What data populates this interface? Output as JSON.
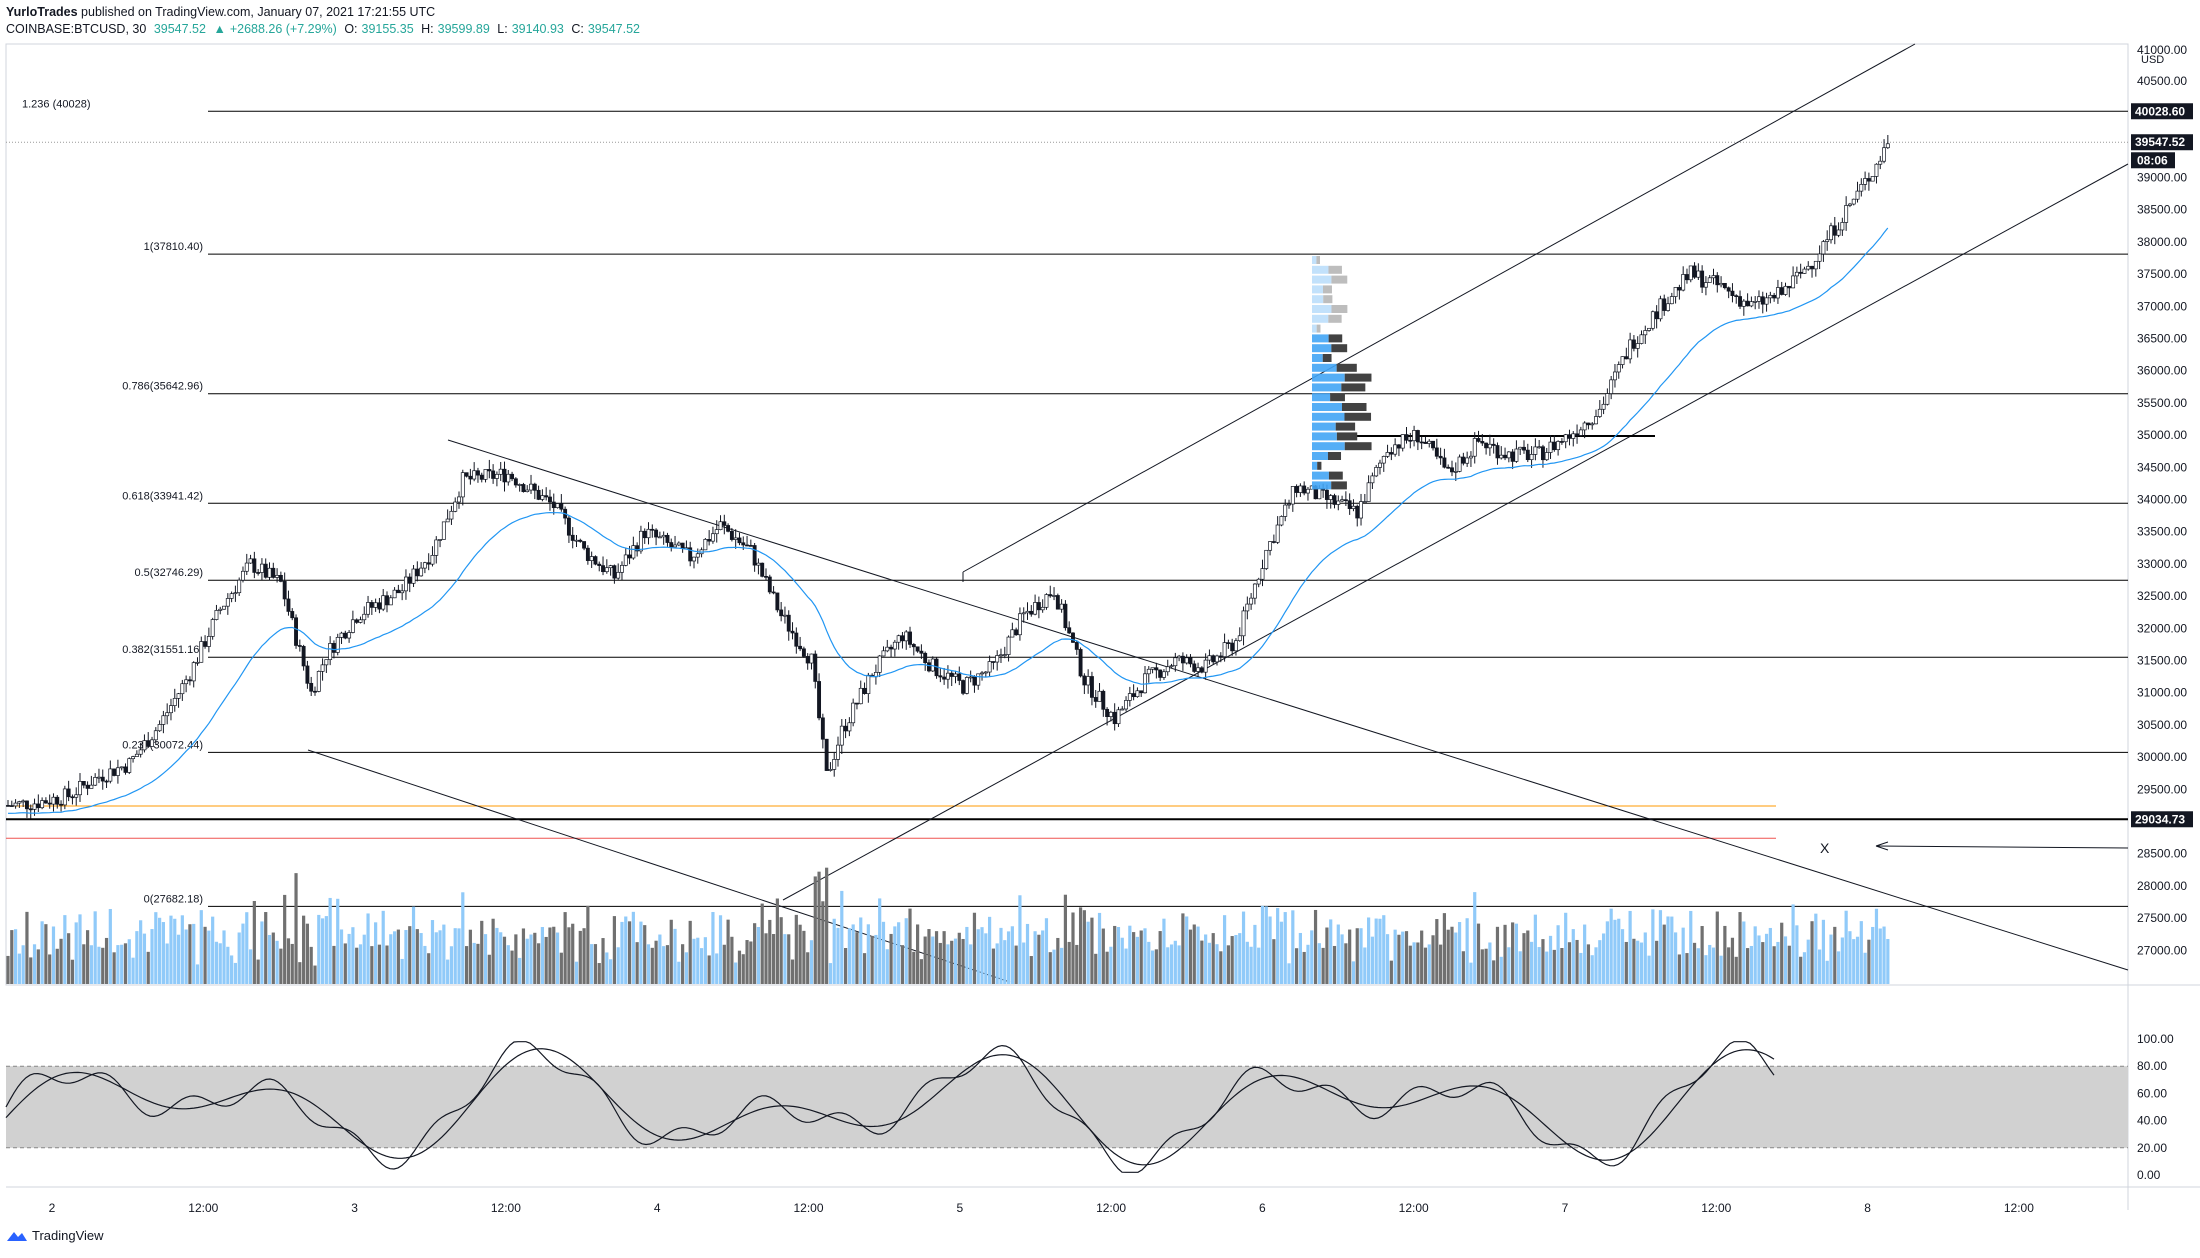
{
  "header": {
    "author": "YurloTrades",
    "published_text": "published on TradingView.com, January 07, 2021 17:21:55 UTC",
    "symbol": "COINBASE:BTCUSD, 30",
    "last": "39547.52",
    "change": "+2688.26 (+7.29%)",
    "o_label": "O:",
    "o": "39155.35",
    "h_label": "H:",
    "h": "39599.89",
    "l_label": "L:",
    "l": "39140.93",
    "c_label": "C:",
    "c": "39547.52"
  },
  "footer": {
    "brand": "TradingView"
  },
  "colors": {
    "up": "#ffffff",
    "down": "#131722",
    "ema": "#2196f3",
    "vol_up": "#90caf9",
    "vol_down": "#707070",
    "grid": "#000000"
  },
  "chart_data": {
    "type": "candlestick",
    "price_axis": {
      "currency": "USD",
      "ticks": [
        "41000.00",
        "40500.00",
        "39000.00",
        "38500.00",
        "38000.00",
        "37500.00",
        "37000.00",
        "36500.00",
        "36000.00",
        "35500.00",
        "35000.00",
        "34500.00",
        "34000.00",
        "33500.00",
        "33000.00",
        "32500.00",
        "32000.00",
        "31500.00",
        "31000.00",
        "30500.00",
        "30000.00",
        "29500.00",
        "28500.00",
        "28000.00",
        "27500.00",
        "27000.00"
      ],
      "badges": [
        {
          "value": 40028.6,
          "text": "40028.60"
        },
        {
          "value": 39547.52,
          "text": "39547.52"
        },
        {
          "value": 29034.73,
          "text": "29034.73"
        }
      ],
      "countdown": "08:06"
    },
    "time_axis": [
      "2",
      "12:00",
      "3",
      "12:00",
      "4",
      "12:00",
      "5",
      "12:00",
      "6",
      "12:00",
      "7",
      "12:00",
      "8",
      "12:00"
    ],
    "fib_levels": [
      {
        "ratio": "1.236",
        "label": "1.236 (40028)",
        "price": 40028
      },
      {
        "ratio": "1",
        "label": "1(37810.40)",
        "price": 37810.4
      },
      {
        "ratio": "0.786",
        "label": "0.786(35642.96)",
        "price": 35642.96
      },
      {
        "ratio": "0.618",
        "label": "0.618(33941.42)",
        "price": 33941.42
      },
      {
        "ratio": "0.5",
        "label": "0.5(32746.29)",
        "price": 32746.29
      },
      {
        "ratio": "0.382",
        "label": "0.382(31551.16)",
        "price": 31551.16
      },
      {
        "ratio": "0.236",
        "label": "0.236(30072.44)",
        "price": 30072.44
      },
      {
        "ratio": "0",
        "label": "0(27682.18)",
        "price": 27682.18
      }
    ],
    "annotation": "X",
    "close_path": [
      {
        "t": 0,
        "p": 29250
      },
      {
        "t": 2,
        "p": 29300
      },
      {
        "t": 4,
        "p": 29400
      },
      {
        "t": 6,
        "p": 29700
      },
      {
        "t": 8,
        "p": 29900
      },
      {
        "t": 10,
        "p": 30500
      },
      {
        "t": 12,
        "p": 31300
      },
      {
        "t": 14,
        "p": 32300
      },
      {
        "t": 16,
        "p": 33000
      },
      {
        "t": 18,
        "p": 32700
      },
      {
        "t": 20,
        "p": 31000
      },
      {
        "t": 21,
        "p": 31600
      },
      {
        "t": 23,
        "p": 32200
      },
      {
        "t": 26,
        "p": 32600
      },
      {
        "t": 28,
        "p": 33200
      },
      {
        "t": 30,
        "p": 34300
      },
      {
        "t": 33,
        "p": 34400
      },
      {
        "t": 36,
        "p": 33900
      },
      {
        "t": 38,
        "p": 33200
      },
      {
        "t": 40,
        "p": 32800
      },
      {
        "t": 42,
        "p": 33500
      },
      {
        "t": 45,
        "p": 33100
      },
      {
        "t": 47,
        "p": 33600
      },
      {
        "t": 49,
        "p": 33200
      },
      {
        "t": 51,
        "p": 32200
      },
      {
        "t": 53,
        "p": 31500
      },
      {
        "t": 54,
        "p": 29700
      },
      {
        "t": 55,
        "p": 30400
      },
      {
        "t": 57,
        "p": 31300
      },
      {
        "t": 59,
        "p": 31900
      },
      {
        "t": 61,
        "p": 31400
      },
      {
        "t": 63,
        "p": 31100
      },
      {
        "t": 65,
        "p": 31400
      },
      {
        "t": 67,
        "p": 32200
      },
      {
        "t": 69,
        "p": 32600
      },
      {
        "t": 71,
        "p": 31200
      },
      {
        "t": 73,
        "p": 30600
      },
      {
        "t": 75,
        "p": 31200
      },
      {
        "t": 77,
        "p": 31500
      },
      {
        "t": 79,
        "p": 31400
      },
      {
        "t": 81,
        "p": 31800
      },
      {
        "t": 83,
        "p": 33200
      },
      {
        "t": 85,
        "p": 34200
      },
      {
        "t": 87,
        "p": 34000
      },
      {
        "t": 89,
        "p": 33800
      },
      {
        "t": 91,
        "p": 34800
      },
      {
        "t": 93,
        "p": 35000
      },
      {
        "t": 95,
        "p": 34400
      },
      {
        "t": 97,
        "p": 34900
      },
      {
        "t": 99,
        "p": 34700
      },
      {
        "t": 101,
        "p": 34700
      },
      {
        "t": 103,
        "p": 35000
      },
      {
        "t": 105,
        "p": 35400
      },
      {
        "t": 107,
        "p": 36400
      },
      {
        "t": 109,
        "p": 37000
      },
      {
        "t": 111,
        "p": 37500
      },
      {
        "t": 113,
        "p": 37300
      },
      {
        "t": 115,
        "p": 37000
      },
      {
        "t": 117,
        "p": 37200
      },
      {
        "t": 119,
        "p": 37700
      },
      {
        "t": 121,
        "p": 38400
      },
      {
        "t": 123,
        "p": 39100
      },
      {
        "t": 124,
        "p": 39547
      }
    ],
    "stoch_axis": [
      "100.00",
      "80.00",
      "60.00",
      "40.00",
      "20.00",
      "0.00"
    ]
  }
}
